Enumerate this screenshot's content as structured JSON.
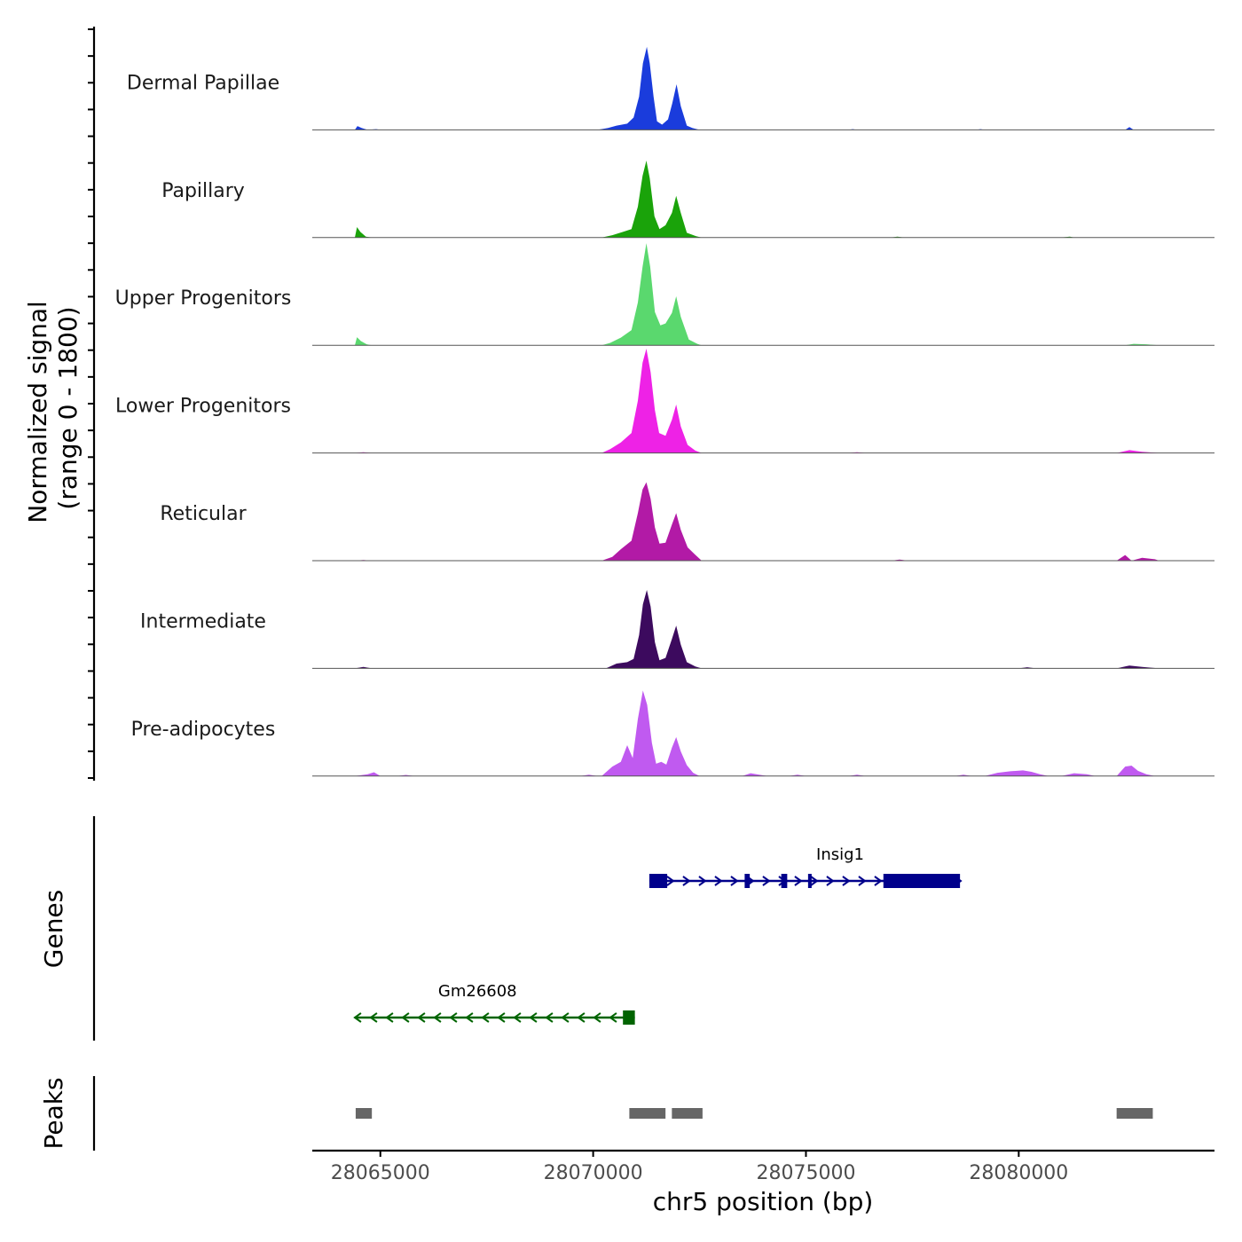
{
  "chart_data": {
    "type": "area",
    "title": "",
    "ylabel": "Normalized signal\n(range 0 - 1800)",
    "ylabel_lines": [
      "Normalized signal",
      "(range 0 - 1800)"
    ],
    "xlabel": "chr5 position (bp)",
    "xlim": [
      28063400,
      28084600
    ],
    "xticks": [
      28065000,
      28070000,
      28075000,
      28080000
    ],
    "xtick_labels": [
      "28065000",
      "28070000",
      "28075000",
      "28080000"
    ],
    "ylim": [
      0,
      1800
    ],
    "tracks": [
      {
        "name": "Dermal Papillae",
        "color": "#1a3cdc",
        "profile": [
          [
            28064400,
            0
          ],
          [
            28064460,
            80
          ],
          [
            28064560,
            40
          ],
          [
            28064700,
            0
          ],
          [
            28064900,
            15
          ],
          [
            28065000,
            0
          ],
          [
            28070100,
            0
          ],
          [
            28070350,
            40
          ],
          [
            28070550,
            90
          ],
          [
            28070800,
            130
          ],
          [
            28070950,
            260
          ],
          [
            28071080,
            700
          ],
          [
            28071170,
            1400
          ],
          [
            28071260,
            1750
          ],
          [
            28071330,
            1400
          ],
          [
            28071420,
            700
          ],
          [
            28071500,
            180
          ],
          [
            28071620,
            110
          ],
          [
            28071760,
            220
          ],
          [
            28071860,
            560
          ],
          [
            28071960,
            960
          ],
          [
            28072060,
            500
          ],
          [
            28072200,
            90
          ],
          [
            28072330,
            40
          ],
          [
            28072500,
            0
          ],
          [
            28076000,
            0
          ],
          [
            28076100,
            15
          ],
          [
            28076200,
            0
          ],
          [
            28079000,
            0
          ],
          [
            28079100,
            15
          ],
          [
            28079200,
            0
          ],
          [
            28082500,
            0
          ],
          [
            28082600,
            60
          ],
          [
            28082700,
            0
          ],
          [
            28083200,
            0
          ]
        ]
      },
      {
        "name": "Papillary",
        "color": "#1aa30a",
        "profile": [
          [
            28064400,
            0
          ],
          [
            28064450,
            220
          ],
          [
            28064530,
            120
          ],
          [
            28064660,
            20
          ],
          [
            28064800,
            0
          ],
          [
            28070200,
            0
          ],
          [
            28070450,
            50
          ],
          [
            28070700,
            120
          ],
          [
            28070900,
            180
          ],
          [
            28071050,
            650
          ],
          [
            28071160,
            1300
          ],
          [
            28071250,
            1620
          ],
          [
            28071330,
            1250
          ],
          [
            28071440,
            450
          ],
          [
            28071560,
            180
          ],
          [
            28071700,
            260
          ],
          [
            28071850,
            520
          ],
          [
            28071950,
            880
          ],
          [
            28072060,
            520
          ],
          [
            28072200,
            100
          ],
          [
            28072420,
            30
          ],
          [
            28072550,
            0
          ],
          [
            28077000,
            0
          ],
          [
            28077150,
            20
          ],
          [
            28077300,
            0
          ],
          [
            28081000,
            0
          ],
          [
            28081200,
            20
          ],
          [
            28081300,
            0
          ],
          [
            28083300,
            0
          ]
        ]
      },
      {
        "name": "Upper Progenitors",
        "color": "#5ad86e",
        "profile": [
          [
            28064400,
            0
          ],
          [
            28064450,
            170
          ],
          [
            28064540,
            90
          ],
          [
            28064680,
            20
          ],
          [
            28064800,
            0
          ],
          [
            28070200,
            0
          ],
          [
            28070400,
            50
          ],
          [
            28070650,
            160
          ],
          [
            28070900,
            320
          ],
          [
            28071050,
            900
          ],
          [
            28071160,
            1650
          ],
          [
            28071250,
            2150
          ],
          [
            28071340,
            1650
          ],
          [
            28071450,
            700
          ],
          [
            28071580,
            420
          ],
          [
            28071700,
            460
          ],
          [
            28071850,
            680
          ],
          [
            28071950,
            1030
          ],
          [
            28072060,
            600
          ],
          [
            28072250,
            120
          ],
          [
            28072450,
            30
          ],
          [
            28072550,
            0
          ],
          [
            28082500,
            0
          ],
          [
            28082700,
            30
          ],
          [
            28083000,
            20
          ],
          [
            28083300,
            0
          ]
        ]
      },
      {
        "name": "Lower Progenitors",
        "color": "#ee22e6",
        "profile": [
          [
            28064400,
            0
          ],
          [
            28064600,
            15
          ],
          [
            28064800,
            0
          ],
          [
            28070200,
            0
          ],
          [
            28070400,
            80
          ],
          [
            28070650,
            220
          ],
          [
            28070900,
            420
          ],
          [
            28071050,
            1100
          ],
          [
            28071160,
            1900
          ],
          [
            28071250,
            2200
          ],
          [
            28071350,
            1700
          ],
          [
            28071450,
            900
          ],
          [
            28071550,
            420
          ],
          [
            28071700,
            360
          ],
          [
            28071850,
            700
          ],
          [
            28071950,
            1020
          ],
          [
            28072060,
            560
          ],
          [
            28072220,
            170
          ],
          [
            28072400,
            50
          ],
          [
            28072550,
            0
          ],
          [
            28076000,
            0
          ],
          [
            28076200,
            15
          ],
          [
            28076400,
            0
          ],
          [
            28082300,
            0
          ],
          [
            28082600,
            60
          ],
          [
            28082900,
            25
          ],
          [
            28083300,
            0
          ]
        ]
      },
      {
        "name": "Reticular",
        "color": "#b21aa6",
        "profile": [
          [
            28064400,
            0
          ],
          [
            28064600,
            15
          ],
          [
            28064800,
            0
          ],
          [
            28070200,
            0
          ],
          [
            28070450,
            80
          ],
          [
            28070650,
            240
          ],
          [
            28070900,
            420
          ],
          [
            28071050,
            1000
          ],
          [
            28071160,
            1500
          ],
          [
            28071250,
            1650
          ],
          [
            28071350,
            1300
          ],
          [
            28071450,
            700
          ],
          [
            28071560,
            360
          ],
          [
            28071700,
            380
          ],
          [
            28071850,
            760
          ],
          [
            28071950,
            1000
          ],
          [
            28072060,
            650
          ],
          [
            28072220,
            280
          ],
          [
            28072380,
            140
          ],
          [
            28072550,
            0
          ],
          [
            28077000,
            0
          ],
          [
            28077200,
            25
          ],
          [
            28077400,
            0
          ],
          [
            28082300,
            0
          ],
          [
            28082500,
            120
          ],
          [
            28082650,
            0
          ],
          [
            28082900,
            60
          ],
          [
            28083200,
            30
          ],
          [
            28083300,
            0
          ]
        ]
      },
      {
        "name": "Intermediate",
        "color": "#3c0a5e",
        "profile": [
          [
            28064400,
            0
          ],
          [
            28064600,
            30
          ],
          [
            28064800,
            0
          ],
          [
            28070300,
            0
          ],
          [
            28070550,
            100
          ],
          [
            28070800,
            130
          ],
          [
            28070950,
            200
          ],
          [
            28071080,
            700
          ],
          [
            28071170,
            1350
          ],
          [
            28071260,
            1650
          ],
          [
            28071350,
            1300
          ],
          [
            28071450,
            550
          ],
          [
            28071560,
            170
          ],
          [
            28071700,
            220
          ],
          [
            28071850,
            620
          ],
          [
            28071950,
            900
          ],
          [
            28072060,
            500
          ],
          [
            28072200,
            130
          ],
          [
            28072400,
            40
          ],
          [
            28072550,
            0
          ],
          [
            28080000,
            0
          ],
          [
            28080200,
            25
          ],
          [
            28080400,
            0
          ],
          [
            28082300,
            0
          ],
          [
            28082600,
            60
          ],
          [
            28082900,
            30
          ],
          [
            28083300,
            0
          ]
        ]
      },
      {
        "name": "Pre-adipocytes",
        "color": "#c05af0",
        "profile": [
          [
            28064400,
            0
          ],
          [
            28064700,
            40
          ],
          [
            28064850,
            80
          ],
          [
            28065000,
            0
          ],
          [
            28065400,
            0
          ],
          [
            28065600,
            25
          ],
          [
            28065800,
            0
          ],
          [
            28069700,
            0
          ],
          [
            28069900,
            30
          ],
          [
            28070100,
            0
          ],
          [
            28070200,
            0
          ],
          [
            28070450,
            200
          ],
          [
            28070650,
            300
          ],
          [
            28070800,
            650
          ],
          [
            28070930,
            380
          ],
          [
            28071050,
            1200
          ],
          [
            28071170,
            1800
          ],
          [
            28071270,
            1500
          ],
          [
            28071380,
            700
          ],
          [
            28071480,
            260
          ],
          [
            28071600,
            300
          ],
          [
            28071720,
            240
          ],
          [
            28071850,
            600
          ],
          [
            28071950,
            820
          ],
          [
            28072060,
            520
          ],
          [
            28072200,
            230
          ],
          [
            28072350,
            70
          ],
          [
            28072500,
            0
          ],
          [
            28073500,
            0
          ],
          [
            28073700,
            60
          ],
          [
            28073900,
            30
          ],
          [
            28074100,
            0
          ],
          [
            28074600,
            0
          ],
          [
            28074800,
            30
          ],
          [
            28075000,
            0
          ],
          [
            28076000,
            0
          ],
          [
            28076200,
            30
          ],
          [
            28076400,
            0
          ],
          [
            28078500,
            0
          ],
          [
            28078700,
            30
          ],
          [
            28078900,
            0
          ],
          [
            28079200,
            0
          ],
          [
            28079500,
            70
          ],
          [
            28079800,
            100
          ],
          [
            28080100,
            120
          ],
          [
            28080300,
            90
          ],
          [
            28080500,
            40
          ],
          [
            28080700,
            0
          ],
          [
            28081000,
            0
          ],
          [
            28081300,
            60
          ],
          [
            28081600,
            40
          ],
          [
            28081800,
            0
          ],
          [
            28082300,
            0
          ],
          [
            28082500,
            200
          ],
          [
            28082650,
            220
          ],
          [
            28082800,
            110
          ],
          [
            28083000,
            40
          ],
          [
            28083200,
            0
          ]
        ]
      }
    ],
    "genes": [
      {
        "name": "Insig1",
        "strand": "+",
        "color": "#00008b",
        "start": 28071320,
        "end": 28078620,
        "exons": [
          [
            28071320,
            28071740
          ],
          [
            28073560,
            28073680
          ],
          [
            28074420,
            28074560
          ],
          [
            28075050,
            28075130
          ],
          [
            28076820,
            28078620
          ]
        ]
      },
      {
        "name": "Gm26608",
        "strand": "-",
        "color": "#006400",
        "start": 28064420,
        "end": 28070980,
        "exons": [
          [
            28070700,
            28070980
          ]
        ]
      }
    ],
    "peaks": [
      [
        28064420,
        28064800
      ],
      [
        28070850,
        28071700
      ],
      [
        28071850,
        28072570
      ],
      [
        28082300,
        28083150
      ]
    ],
    "panel_labels": {
      "genes": "Genes",
      "peaks": "Peaks"
    }
  }
}
